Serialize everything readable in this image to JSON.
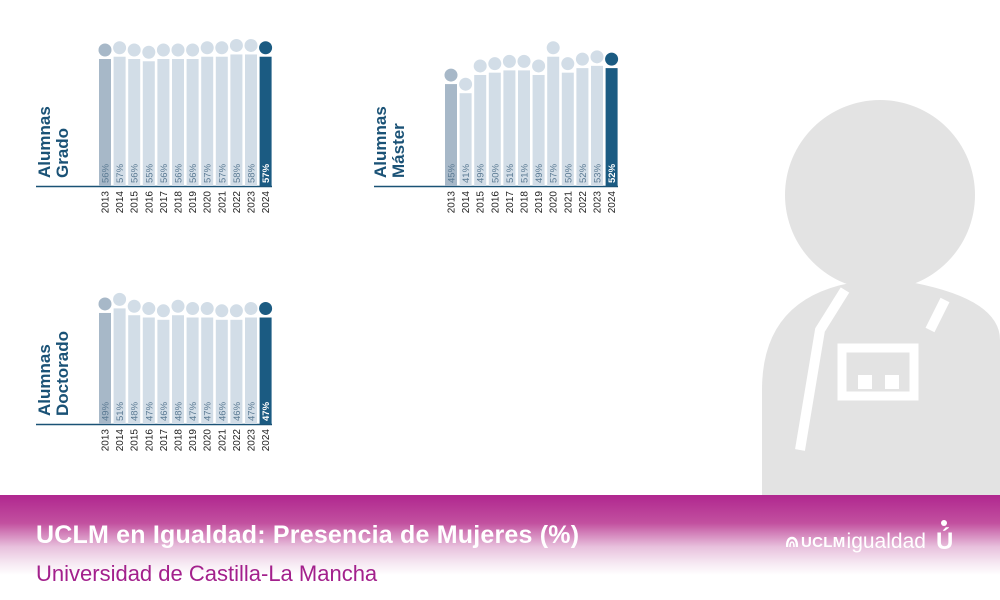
{
  "footer": {
    "title": "UCLM en Igualdad: Presencia de Mujeres (%)",
    "subtitle": "Universidad de Castilla-La Mancha",
    "brand_bold": "UCLM",
    "brand_light": "igualdad",
    "brand_mark": "Ú"
  },
  "colors": {
    "bar_first": "#a7b8c8",
    "bar_mid": "#d2dde7",
    "bar_last": "#1b5b82",
    "label": "#1a5276",
    "footer": "#b0278f",
    "subtitle": "#a3208c",
    "silhouette": "#e3e3e3"
  },
  "icons": {
    "background": "person-silhouette-icon",
    "brand": "uclm-logo-icon"
  },
  "chart_data": [
    {
      "type": "bar",
      "label_lines": [
        "Alumnas",
        "Grado"
      ],
      "categories": [
        "2013",
        "2014",
        "2015",
        "2016",
        "2017",
        "2018",
        "2019",
        "2020",
        "2021",
        "2022",
        "2023",
        "2024"
      ],
      "values": [
        56,
        57,
        56,
        55,
        56,
        56,
        56,
        57,
        57,
        58,
        58,
        57
      ],
      "value_labels": [
        "56%",
        "57%",
        "56%",
        "55%",
        "56%",
        "56%",
        "56%",
        "57%",
        "57%",
        "58%",
        "58%",
        "57%"
      ],
      "highlight": "2024"
    },
    {
      "type": "bar",
      "label_lines": [
        "Alumnas",
        "Máster"
      ],
      "categories": [
        "2013",
        "2014",
        "2015",
        "2016",
        "2017",
        "2018",
        "2019",
        "2020",
        "2021",
        "2022",
        "2023",
        "2024"
      ],
      "values": [
        45,
        41,
        49,
        50,
        51,
        51,
        49,
        57,
        50,
        52,
        53,
        52
      ],
      "value_labels": [
        "45%",
        "41%",
        "49%",
        "50%",
        "51%",
        "51%",
        "49%",
        "57%",
        "50%",
        "52%",
        "53%",
        "52%"
      ],
      "highlight": "2024"
    },
    {
      "type": "bar",
      "label_lines": [
        "Alumnas",
        "Doctorado"
      ],
      "categories": [
        "2013",
        "2014",
        "2015",
        "2016",
        "2017",
        "2018",
        "2019",
        "2020",
        "2021",
        "2022",
        "2023",
        "2024"
      ],
      "values": [
        49,
        51,
        48,
        47,
        46,
        48,
        47,
        47,
        46,
        46,
        47,
        47
      ],
      "value_labels": [
        "49%",
        "51%",
        "48%",
        "47%",
        "46%",
        "48%",
        "47%",
        "47%",
        "46%",
        "46%",
        "47%",
        "47%"
      ],
      "highlight": "2024"
    }
  ]
}
